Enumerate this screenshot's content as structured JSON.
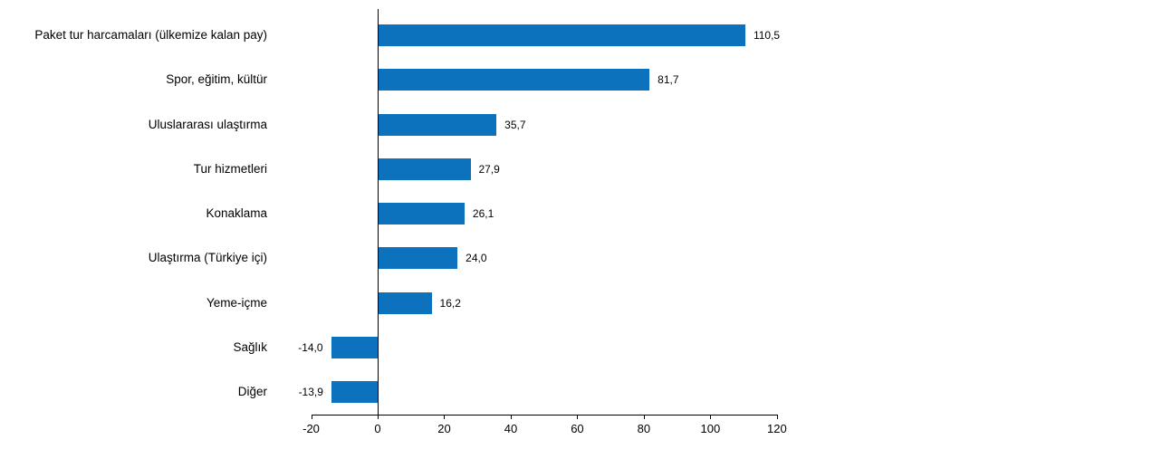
{
  "chart_data": {
    "type": "bar",
    "orientation": "horizontal",
    "title": "",
    "xlabel": "",
    "ylabel": "",
    "grid": false,
    "legend": "none",
    "categories": [
      "Paket tur harcamaları (ülkemize kalan pay)",
      "Spor, eğitim, kültür",
      "Uluslararası ulaştırma",
      "Tur hizmetleri",
      "Konaklama",
      "Ulaştırma (Türkiye içi)",
      "Yeme-içme",
      "Sağlık",
      "Diğer"
    ],
    "values": [
      110.5,
      81.7,
      35.7,
      27.9,
      26.1,
      24.0,
      16.2,
      -14.0,
      -13.9
    ],
    "value_labels": [
      "110,5",
      "81,7",
      "35,7",
      "27,9",
      "26,1",
      "24,0",
      "16,2",
      "-14,0",
      "-13,9"
    ],
    "x_ticks": [
      -20,
      0,
      20,
      40,
      60,
      80,
      100,
      120
    ],
    "x_tick_labels": [
      "-20",
      "0",
      "20",
      "40",
      "60",
      "80",
      "100",
      "120"
    ],
    "xlim": [
      -20,
      120
    ],
    "bar_color": "#0C72BE",
    "axis_color": "#000000",
    "text_color": "#000000"
  }
}
